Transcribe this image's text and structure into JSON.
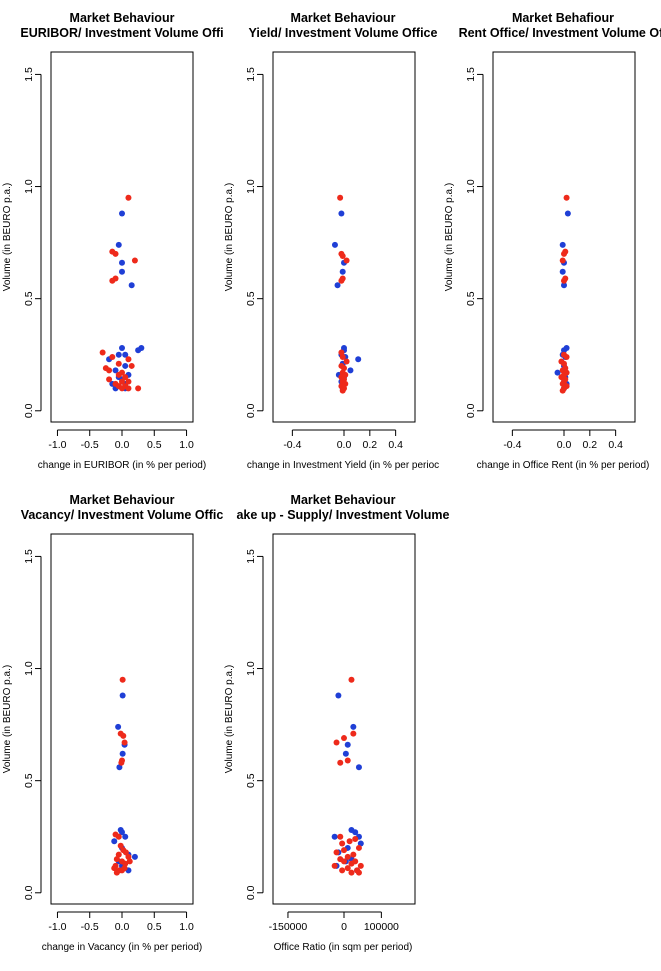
{
  "chart_data": [
    {
      "type": "scatter",
      "title": "Market Behaviour",
      "subtitle": "EURIBOR/ Investment Volume Offi",
      "xlabel": "change in EURIBOR (in % per period)",
      "ylabel": "Volume (in BEURO p.a.)",
      "xlim": [
        -1.1,
        1.1
      ],
      "ylim": [
        -0.05,
        1.6
      ],
      "xticks": [
        -1.0,
        -0.5,
        0.0,
        0.5,
        1.0
      ],
      "xtick_labels": [
        "-1.0",
        "-0.5",
        "0.0",
        "0.5",
        "1.0"
      ],
      "yticks": [
        0.0,
        0.5,
        1.0,
        1.5
      ],
      "ytick_labels": [
        "0.0",
        "0.5",
        "1.0",
        "1.5"
      ],
      "grid": false,
      "series": [
        {
          "color": "#1f3fd6",
          "points": [
            [
              0.0,
              0.88
            ],
            [
              -0.05,
              0.74
            ],
            [
              0.0,
              0.66
            ],
            [
              0.0,
              0.62
            ],
            [
              0.15,
              0.56
            ],
            [
              0.0,
              0.28
            ],
            [
              0.3,
              0.28
            ],
            [
              0.25,
              0.27
            ],
            [
              -0.05,
              0.25
            ],
            [
              0.05,
              0.25
            ],
            [
              -0.2,
              0.23
            ],
            [
              0.05,
              0.2
            ],
            [
              -0.1,
              0.18
            ],
            [
              0.1,
              0.16
            ],
            [
              -0.05,
              0.15
            ],
            [
              0.0,
              0.14
            ],
            [
              0.05,
              0.12
            ],
            [
              -0.15,
              0.12
            ],
            [
              -0.1,
              0.1
            ],
            [
              0.05,
              0.1
            ]
          ]
        },
        {
          "color": "#ee2a1b",
          "points": [
            [
              0.1,
              0.95
            ],
            [
              -0.15,
              0.71
            ],
            [
              -0.1,
              0.7
            ],
            [
              0.2,
              0.67
            ],
            [
              -0.1,
              0.59
            ],
            [
              -0.15,
              0.58
            ],
            [
              -0.3,
              0.26
            ],
            [
              -0.15,
              0.24
            ],
            [
              0.1,
              0.23
            ],
            [
              -0.05,
              0.21
            ],
            [
              0.15,
              0.2
            ],
            [
              -0.25,
              0.19
            ],
            [
              -0.2,
              0.18
            ],
            [
              0.0,
              0.17
            ],
            [
              -0.05,
              0.16
            ],
            [
              0.05,
              0.15
            ],
            [
              -0.2,
              0.14
            ],
            [
              0.0,
              0.13
            ],
            [
              0.1,
              0.13
            ],
            [
              -0.1,
              0.12
            ],
            [
              0.05,
              0.11
            ],
            [
              -0.05,
              0.11
            ],
            [
              0.25,
              0.1
            ],
            [
              0.1,
              0.1
            ],
            [
              0.0,
              0.1
            ]
          ]
        }
      ]
    },
    {
      "type": "scatter",
      "title": "Market Behaviour",
      "subtitle": "Yield/ Investment Volume Office",
      "xlabel": "change in Investment Yield (in % per perioc",
      "ylabel": "Volume (in BEURO p.a.)",
      "xlim": [
        -0.55,
        0.55
      ],
      "ylim": [
        -0.05,
        1.6
      ],
      "xticks": [
        -0.4,
        0.0,
        0.2,
        0.4
      ],
      "xtick_labels": [
        "-0.4",
        "0.0",
        "0.2",
        "0.4"
      ],
      "yticks": [
        0.0,
        0.5,
        1.0,
        1.5
      ],
      "ytick_labels": [
        "0.0",
        "0.5",
        "1.0",
        "1.5"
      ],
      "grid": false,
      "series": [
        {
          "color": "#1f3fd6",
          "points": [
            [
              -0.02,
              0.88
            ],
            [
              -0.07,
              0.74
            ],
            [
              0.0,
              0.66
            ],
            [
              -0.01,
              0.62
            ],
            [
              -0.05,
              0.56
            ],
            [
              0.0,
              0.28
            ],
            [
              0.0,
              0.27
            ],
            [
              -0.02,
              0.25
            ],
            [
              0.01,
              0.24
            ],
            [
              0.11,
              0.23
            ],
            [
              -0.01,
              0.21
            ],
            [
              0.05,
              0.18
            ],
            [
              -0.04,
              0.16
            ],
            [
              0.0,
              0.15
            ],
            [
              -0.02,
              0.13
            ],
            [
              0.0,
              0.12
            ],
            [
              -0.01,
              0.1
            ]
          ]
        },
        {
          "color": "#ee2a1b",
          "points": [
            [
              -0.03,
              0.95
            ],
            [
              -0.02,
              0.7
            ],
            [
              -0.01,
              0.69
            ],
            [
              0.02,
              0.67
            ],
            [
              -0.01,
              0.59
            ],
            [
              -0.02,
              0.58
            ],
            [
              -0.02,
              0.26
            ],
            [
              -0.01,
              0.24
            ],
            [
              0.02,
              0.22
            ],
            [
              -0.02,
              0.2
            ],
            [
              0.0,
              0.19
            ],
            [
              -0.01,
              0.17
            ],
            [
              0.01,
              0.16
            ],
            [
              -0.02,
              0.15
            ],
            [
              0.0,
              0.14
            ],
            [
              -0.01,
              0.13
            ],
            [
              0.01,
              0.12
            ],
            [
              -0.02,
              0.11
            ],
            [
              0.0,
              0.1
            ],
            [
              -0.01,
              0.09
            ]
          ]
        }
      ]
    },
    {
      "type": "scatter",
      "title": "Market Behafiour",
      "subtitle": "Rent Office/ Investment Volume Off",
      "xlabel": "change in Office Rent (in % per period)",
      "ylabel": "Volume (in BEURO p.a.)",
      "xlim": [
        -0.55,
        0.55
      ],
      "ylim": [
        -0.05,
        1.6
      ],
      "xticks": [
        -0.4,
        0.0,
        0.2,
        0.4
      ],
      "xtick_labels": [
        "-0.4",
        "0.0",
        "0.2",
        "0.4"
      ],
      "yticks": [
        0.0,
        0.5,
        1.0,
        1.5
      ],
      "ytick_labels": [
        "0.0",
        "0.5",
        "1.0",
        "1.5"
      ],
      "grid": false,
      "series": [
        {
          "color": "#1f3fd6",
          "points": [
            [
              0.03,
              0.88
            ],
            [
              -0.01,
              0.74
            ],
            [
              0.0,
              0.66
            ],
            [
              -0.01,
              0.62
            ],
            [
              0.0,
              0.56
            ],
            [
              0.02,
              0.28
            ],
            [
              0.0,
              0.27
            ],
            [
              -0.01,
              0.25
            ],
            [
              0.01,
              0.24
            ],
            [
              0.0,
              0.2
            ],
            [
              -0.05,
              0.17
            ],
            [
              0.01,
              0.15
            ],
            [
              0.0,
              0.13
            ],
            [
              0.02,
              0.12
            ],
            [
              0.0,
              0.1
            ]
          ]
        },
        {
          "color": "#ee2a1b",
          "points": [
            [
              0.02,
              0.95
            ],
            [
              0.01,
              0.71
            ],
            [
              0.0,
              0.7
            ],
            [
              -0.01,
              0.67
            ],
            [
              0.01,
              0.59
            ],
            [
              0.0,
              0.58
            ],
            [
              0.0,
              0.25
            ],
            [
              0.02,
              0.24
            ],
            [
              -0.02,
              0.22
            ],
            [
              0.0,
              0.21
            ],
            [
              0.01,
              0.19
            ],
            [
              -0.01,
              0.18
            ],
            [
              0.02,
              0.17
            ],
            [
              0.0,
              0.16
            ],
            [
              -0.02,
              0.15
            ],
            [
              0.01,
              0.14
            ],
            [
              0.0,
              0.13
            ],
            [
              -0.01,
              0.12
            ],
            [
              0.02,
              0.11
            ],
            [
              0.0,
              0.1
            ],
            [
              -0.01,
              0.09
            ]
          ]
        }
      ]
    },
    {
      "type": "scatter",
      "title": "Market Behaviour",
      "subtitle": "Vacancy/ Investment Volume Offic",
      "xlabel": "change in Vacancy (in % per period)",
      "ylabel": "Volume (in BEURO p.a.)",
      "xlim": [
        -1.1,
        1.1
      ],
      "ylim": [
        -0.05,
        1.6
      ],
      "xticks": [
        -1.0,
        -0.5,
        0.0,
        0.5,
        1.0
      ],
      "xtick_labels": [
        "-1.0",
        "-0.5",
        "0.0",
        "0.5",
        "1.0"
      ],
      "yticks": [
        0.0,
        0.5,
        1.0,
        1.5
      ],
      "ytick_labels": [
        "0.0",
        "0.5",
        "1.0",
        "1.5"
      ],
      "grid": false,
      "series": [
        {
          "color": "#1f3fd6",
          "points": [
            [
              0.01,
              0.88
            ],
            [
              -0.06,
              0.74
            ],
            [
              0.04,
              0.66
            ],
            [
              0.01,
              0.62
            ],
            [
              -0.04,
              0.56
            ],
            [
              -0.02,
              0.28
            ],
            [
              0.0,
              0.27
            ],
            [
              0.05,
              0.25
            ],
            [
              -0.12,
              0.23
            ],
            [
              0.0,
              0.2
            ],
            [
              0.1,
              0.17
            ],
            [
              0.2,
              0.16
            ],
            [
              -0.05,
              0.14
            ],
            [
              0.0,
              0.12
            ],
            [
              0.1,
              0.1
            ]
          ]
        },
        {
          "color": "#ee2a1b",
          "points": [
            [
              0.01,
              0.95
            ],
            [
              -0.02,
              0.71
            ],
            [
              0.02,
              0.7
            ],
            [
              0.04,
              0.67
            ],
            [
              0.0,
              0.59
            ],
            [
              -0.01,
              0.58
            ],
            [
              -0.1,
              0.26
            ],
            [
              -0.05,
              0.25
            ],
            [
              -0.02,
              0.21
            ],
            [
              0.02,
              0.19
            ],
            [
              0.06,
              0.18
            ],
            [
              -0.05,
              0.17
            ],
            [
              0.1,
              0.16
            ],
            [
              -0.08,
              0.15
            ],
            [
              0.0,
              0.14
            ],
            [
              0.05,
              0.13
            ],
            [
              -0.1,
              0.12
            ],
            [
              0.04,
              0.11
            ],
            [
              -0.04,
              0.1
            ],
            [
              0.0,
              0.1
            ],
            [
              -0.08,
              0.09
            ],
            [
              0.12,
              0.14
            ],
            [
              -0.12,
              0.11
            ]
          ]
        }
      ]
    },
    {
      "type": "scatter",
      "title": "Market Behaviour",
      "subtitle": "ake up - Supply/ Investment Volume",
      "xlabel": "Office Ratio (in sqm per period)",
      "ylabel": "Volume (in BEURO p.a.)",
      "xlim": [
        -190000,
        190000
      ],
      "ylim": [
        -0.05,
        1.6
      ],
      "xticks": [
        -150000,
        0,
        100000
      ],
      "xtick_labels": [
        "-150000",
        "0",
        "100000"
      ],
      "yticks": [
        0.0,
        0.5,
        1.0,
        1.5
      ],
      "ytick_labels": [
        "0.0",
        "0.5",
        "1.0",
        "1.5"
      ],
      "grid": false,
      "series": [
        {
          "color": "#1f3fd6",
          "points": [
            [
              -15000,
              0.88
            ],
            [
              25000,
              0.74
            ],
            [
              10000,
              0.66
            ],
            [
              5000,
              0.62
            ],
            [
              40000,
              0.56
            ],
            [
              20000,
              0.28
            ],
            [
              30000,
              0.27
            ],
            [
              -25000,
              0.25
            ],
            [
              40000,
              0.25
            ],
            [
              45000,
              0.22
            ],
            [
              10000,
              0.2
            ],
            [
              -15000,
              0.18
            ],
            [
              20000,
              0.15
            ],
            [
              5000,
              0.14
            ],
            [
              -20000,
              0.12
            ],
            [
              35000,
              0.1
            ]
          ]
        },
        {
          "color": "#ee2a1b",
          "points": [
            [
              20000,
              0.95
            ],
            [
              25000,
              0.71
            ],
            [
              0,
              0.69
            ],
            [
              -20000,
              0.67
            ],
            [
              10000,
              0.59
            ],
            [
              -10000,
              0.58
            ],
            [
              -10000,
              0.25
            ],
            [
              30000,
              0.24
            ],
            [
              15000,
              0.23
            ],
            [
              -5000,
              0.22
            ],
            [
              40000,
              0.2
            ],
            [
              0,
              0.19
            ],
            [
              -20000,
              0.18
            ],
            [
              25000,
              0.17
            ],
            [
              10000,
              0.16
            ],
            [
              -10000,
              0.15
            ],
            [
              30000,
              0.14
            ],
            [
              0,
              0.14
            ],
            [
              20000,
              0.13
            ],
            [
              45000,
              0.12
            ],
            [
              -25000,
              0.12
            ],
            [
              10000,
              0.11
            ],
            [
              -5000,
              0.1
            ],
            [
              35000,
              0.1
            ],
            [
              20000,
              0.09
            ],
            [
              40000,
              0.09
            ]
          ]
        }
      ]
    }
  ]
}
